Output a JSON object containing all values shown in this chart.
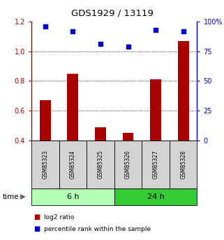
{
  "title": "GDS1929 / 13119",
  "samples": [
    "GSM85323",
    "GSM85324",
    "GSM85325",
    "GSM85326",
    "GSM85327",
    "GSM85328"
  ],
  "log2_ratio": [
    0.67,
    0.85,
    0.49,
    0.45,
    0.81,
    1.07
  ],
  "percentile_rank": [
    96,
    92,
    81,
    79,
    93,
    92
  ],
  "groups": [
    {
      "label": "6 h",
      "indices": [
        0,
        1,
        2
      ],
      "color": "#b3ffb3"
    },
    {
      "label": "24 h",
      "indices": [
        3,
        4,
        5
      ],
      "color": "#33cc33"
    }
  ],
  "bar_color": "#aa0000",
  "dot_color": "#0000cc",
  "ylim_left": [
    0.4,
    1.2
  ],
  "ylim_right": [
    0,
    100
  ],
  "yticks_left": [
    0.4,
    0.6,
    0.8,
    1.0,
    1.2
  ],
  "yticks_right": [
    0,
    25,
    50,
    75,
    100
  ],
  "grid_values": [
    0.6,
    0.8,
    1.0
  ],
  "legend_labels": [
    "log2 ratio",
    "percentile rank within the sample"
  ],
  "time_label": "time",
  "bar_bottom": 0.4,
  "sample_box_color": "#d3d3d3",
  "spine_color": "#000000"
}
